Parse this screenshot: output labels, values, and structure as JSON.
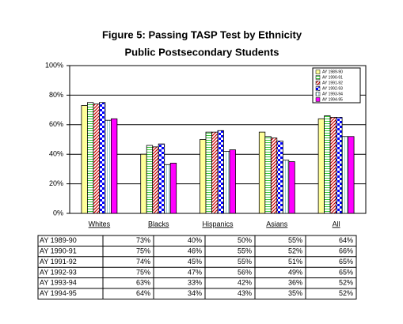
{
  "chart_data": {
    "type": "bar",
    "title": "Figure 5:  Passing TASP Test by Ethnicity",
    "subtitle": "Public Postsecondary Students",
    "categories": [
      "Whites",
      "Blacks",
      "Hispanics",
      "Asians",
      "All"
    ],
    "series": [
      {
        "name": "AY 1989-90",
        "color": "#ffff99",
        "values": [
          73,
          40,
          50,
          55,
          64
        ],
        "value_labels": [
          "73%",
          "40%",
          "50%",
          "55%",
          "64%"
        ]
      },
      {
        "name": "AY 1990-91",
        "color": "#33cc33",
        "values": [
          75,
          46,
          55,
          52,
          66
        ],
        "value_labels": [
          "75%",
          "46%",
          "55%",
          "52%",
          "66%"
        ]
      },
      {
        "name": "AY 1991-92",
        "color": "#cc0000",
        "values": [
          74,
          45,
          55,
          51,
          65
        ],
        "value_labels": [
          "74%",
          "45%",
          "55%",
          "51%",
          "65%"
        ]
      },
      {
        "name": "AY 1992-93",
        "color": "#0000ff",
        "values": [
          75,
          47,
          56,
          49,
          65
        ],
        "value_labels": [
          "75%",
          "47%",
          "56%",
          "49%",
          "65%"
        ]
      },
      {
        "name": "AY 1993-94",
        "color": "#99cccc",
        "values": [
          63,
          33,
          42,
          36,
          52
        ],
        "value_labels": [
          "63%",
          "33%",
          "42%",
          "36%",
          "52%"
        ]
      },
      {
        "name": "AY 1994-95",
        "color": "#ff00ff",
        "values": [
          64,
          34,
          43,
          35,
          52
        ],
        "value_labels": [
          "64%",
          "34%",
          "43%",
          "35%",
          "52%"
        ]
      }
    ],
    "ylim": [
      0,
      100
    ],
    "yticks": [
      {
        "value": 0,
        "label": "0%"
      },
      {
        "value": 20,
        "label": "20%"
      },
      {
        "value": 40,
        "label": "40%"
      },
      {
        "value": 60,
        "label": "60%"
      },
      {
        "value": 80,
        "label": "80%"
      },
      {
        "value": 100,
        "label": "100%"
      }
    ],
    "grid": true,
    "legend": "upper right"
  }
}
